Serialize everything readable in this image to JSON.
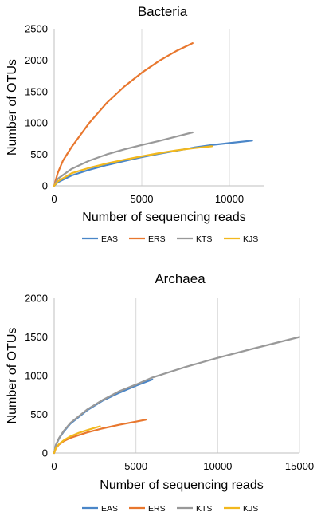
{
  "chart_data": [
    {
      "type": "line",
      "title": "Bacteria",
      "xlabel": "Number of sequencing reads",
      "ylabel": "Number of OTUs",
      "xlim": [
        0,
        12000
      ],
      "ylim": [
        0,
        2500
      ],
      "xticks": [
        0,
        5000,
        10000
      ],
      "yticks": [
        0,
        500,
        1000,
        1500,
        2000,
        2500
      ],
      "grid": "vertical",
      "legend": "bottom",
      "series": [
        {
          "name": "EAS",
          "color": "#4a86c8",
          "x": [
            0,
            200,
            1000,
            2000,
            3000,
            4000,
            5000,
            6000,
            7000,
            8000,
            9000,
            10000,
            11300
          ],
          "y": [
            0,
            55,
            165,
            255,
            330,
            395,
            455,
            510,
            560,
            610,
            650,
            680,
            720
          ]
        },
        {
          "name": "ERS",
          "color": "#e8772e",
          "x": [
            0,
            200,
            500,
            1000,
            2000,
            3000,
            4000,
            5000,
            6000,
            7000,
            7900
          ],
          "y": [
            0,
            200,
            400,
            620,
            1000,
            1320,
            1580,
            1800,
            1990,
            2150,
            2270
          ]
        },
        {
          "name": "KTS",
          "color": "#999999",
          "x": [
            0,
            200,
            1000,
            2000,
            3000,
            4000,
            5000,
            6000,
            7000,
            7900
          ],
          "y": [
            0,
            110,
            270,
            400,
            500,
            580,
            650,
            715,
            785,
            850
          ]
        },
        {
          "name": "KJS",
          "color": "#f2b81d",
          "x": [
            0,
            200,
            1000,
            2000,
            3000,
            4000,
            5000,
            6000,
            7000,
            8000,
            9000
          ],
          "y": [
            0,
            70,
            200,
            285,
            355,
            415,
            470,
            520,
            565,
            600,
            630
          ]
        }
      ]
    },
    {
      "type": "line",
      "title": "Archaea",
      "xlabel": "Number of sequencing reads",
      "ylabel": "Number of OTUs",
      "xlim": [
        0,
        15000
      ],
      "ylim": [
        0,
        2000
      ],
      "xticks": [
        0,
        5000,
        10000,
        15000
      ],
      "yticks": [
        0,
        500,
        1000,
        1500,
        2000
      ],
      "grid": "vertical",
      "legend": "bottom",
      "series": [
        {
          "name": "EAS",
          "color": "#4a86c8",
          "x": [
            0,
            100,
            300,
            600,
            1000,
            2000,
            3000,
            4000,
            5000,
            6000
          ],
          "y": [
            0,
            100,
            190,
            280,
            380,
            550,
            680,
            780,
            870,
            950
          ]
        },
        {
          "name": "ERS",
          "color": "#e8772e",
          "x": [
            0,
            100,
            300,
            600,
            1000,
            2000,
            3000,
            4000,
            5000,
            5600
          ],
          "y": [
            0,
            60,
            110,
            155,
            195,
            265,
            320,
            365,
            405,
            430
          ]
        },
        {
          "name": "KTS",
          "color": "#999999",
          "x": [
            0,
            100,
            300,
            600,
            1000,
            2000,
            3000,
            4000,
            5000,
            6000,
            8000,
            10000,
            12000,
            15000
          ],
          "y": [
            0,
            105,
            195,
            290,
            390,
            560,
            690,
            800,
            885,
            975,
            1110,
            1230,
            1340,
            1500
          ]
        },
        {
          "name": "KJS",
          "color": "#f2b81d",
          "x": [
            0,
            100,
            300,
            600,
            1000,
            1500,
            2000,
            2800
          ],
          "y": [
            0,
            65,
            115,
            165,
            215,
            260,
            295,
            345
          ]
        }
      ]
    }
  ]
}
